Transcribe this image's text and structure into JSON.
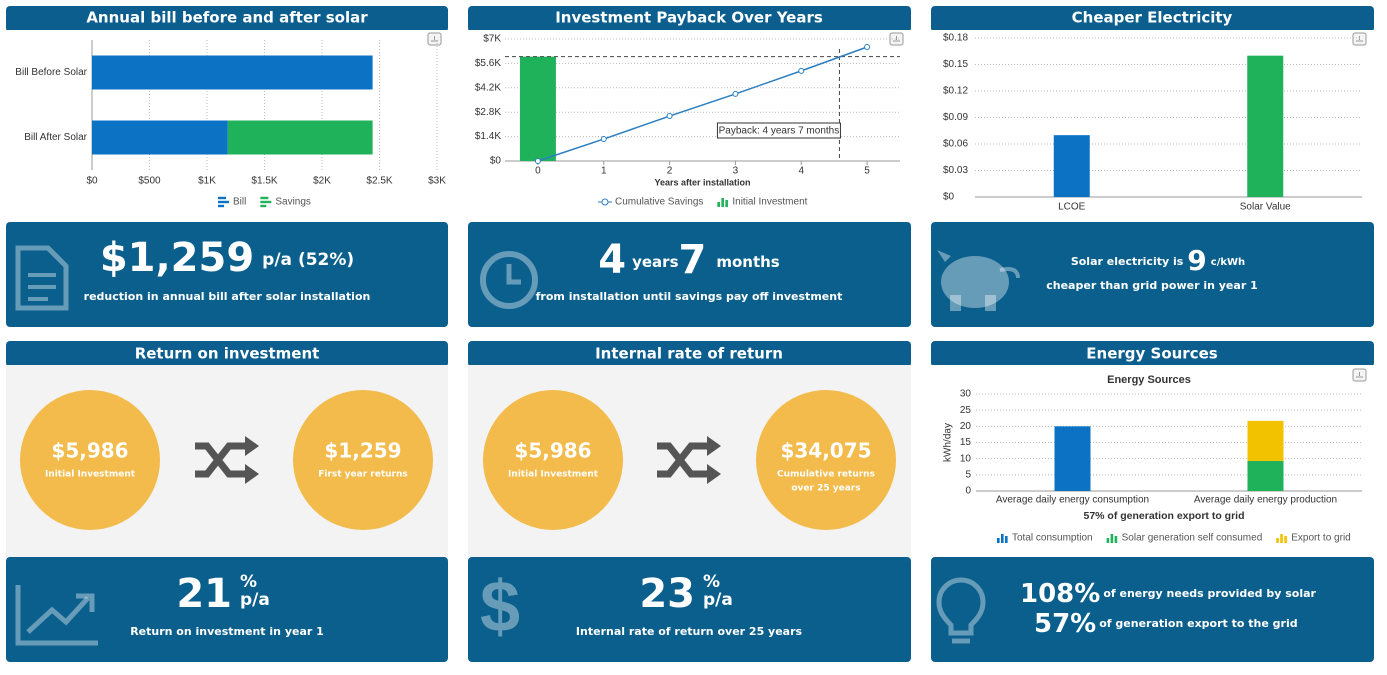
{
  "panels": [
    {
      "header": "Annual bill before and after solar",
      "kpi": {
        "value": "$1,259",
        "unit": "p/a (52%)",
        "text": "reduction in annual bill after solar installation"
      }
    },
    {
      "header": "Investment Payback Over Years",
      "kpi": {
        "years": "4",
        "years_unit": "years",
        "months": "7",
        "months_unit": "months",
        "text": "from installation until savings pay off investment"
      }
    },
    {
      "header": "Cheaper Electricity",
      "kpi": {
        "prefix": "Solar electricity is",
        "value": "9",
        "unit": "c/kWh",
        "text": "cheaper than grid power in year 1"
      }
    },
    {
      "header": "Return on investment",
      "circles": [
        {
          "value": "$5,986",
          "label": "Initial Investment"
        },
        {
          "value": "$1,259",
          "label": "First year returns"
        }
      ],
      "kpi": {
        "value": "21",
        "unit_top": "%",
        "unit_bottom": "p/a",
        "text": "Return on investment in year 1"
      }
    },
    {
      "header": "Internal rate of return",
      "circles": [
        {
          "value": "$5,986",
          "label": "Initial Investment"
        },
        {
          "value": "$34,075",
          "label": [
            "Cumulative returns",
            "over 25 years"
          ]
        }
      ],
      "kpi": {
        "value": "23",
        "unit_top": "%",
        "unit_bottom": "p/a",
        "text": "Internal rate of return over 25 years"
      }
    },
    {
      "header": "Energy Sources",
      "kpi": {
        "lines": [
          {
            "value": "108%",
            "text": "of energy needs provided by solar"
          },
          {
            "value": "57%",
            "text": "of generation export to the grid"
          }
        ]
      }
    }
  ],
  "chart_data": [
    {
      "type": "bar",
      "orientation": "horizontal",
      "stacked": true,
      "categories": [
        "Bill Before Solar",
        "Bill After Solar"
      ],
      "series": [
        {
          "name": "Bill",
          "color": "#0b72c4",
          "values": [
            2440,
            1181
          ]
        },
        {
          "name": "Savings",
          "color": "#1fb25a",
          "values": [
            null,
            1259
          ]
        }
      ],
      "xlim": [
        0,
        3000
      ],
      "xticks": [
        {
          "value": 0,
          "label": "$0"
        },
        {
          "value": 500,
          "label": "$500"
        },
        {
          "value": 1000,
          "label": "$1K"
        },
        {
          "value": 1500,
          "label": "$1.5K"
        },
        {
          "value": 2000,
          "label": "$2K"
        },
        {
          "value": 2500,
          "label": "$2.5K"
        },
        {
          "value": 3000,
          "label": "$3K"
        }
      ],
      "grid": true
    },
    {
      "type": "combo",
      "x": [
        0,
        1,
        2,
        3,
        4,
        5
      ],
      "xlabel": "Years after installation",
      "series": [
        {
          "name": "Cumulative Savings",
          "type": "line",
          "color": "#2a7fc1",
          "values": [
            0,
            1259,
            2580,
            3850,
            5170,
            6540
          ]
        },
        {
          "name": "Initial Investment",
          "type": "bar",
          "color": "#1fb25a",
          "values": [
            5986,
            null,
            null,
            null,
            null,
            null
          ]
        }
      ],
      "xlim": [
        -0.5,
        5.5
      ],
      "xticks": [
        0,
        1,
        2,
        3,
        4,
        5
      ],
      "ylim": [
        0,
        7000
      ],
      "yticks": [
        {
          "value": 0,
          "label": "$0"
        },
        {
          "value": 1400,
          "label": "$1.4K"
        },
        {
          "value": 2800,
          "label": "$2.8K"
        },
        {
          "value": 4200,
          "label": "$4.2K"
        },
        {
          "value": 5600,
          "label": "$5.6K"
        },
        {
          "value": 7000,
          "label": "$7K"
        }
      ],
      "annotation": {
        "text": "Payback: 4 years 7 months",
        "x": 4.58
      },
      "grid": true
    },
    {
      "type": "bar",
      "categories": [
        "LCOE",
        "Solar Value"
      ],
      "values": [
        0.07,
        0.16
      ],
      "colors": [
        "#0b72c4",
        "#1fb25a"
      ],
      "ylim": [
        0,
        0.18
      ],
      "yticks": [
        {
          "value": 0,
          "label": "$0"
        },
        {
          "value": 0.03,
          "label": "$0.03"
        },
        {
          "value": 0.06,
          "label": "$0.06"
        },
        {
          "value": 0.09,
          "label": "$0.09"
        },
        {
          "value": 0.12,
          "label": "$0.12"
        },
        {
          "value": 0.15,
          "label": "$0.15"
        },
        {
          "value": 0.18,
          "label": "$0.18"
        }
      ],
      "grid": true
    },
    {
      "type": "bar",
      "stacked": true,
      "title": "Energy Sources",
      "subtitle": "57% of generation export to grid",
      "ylabel": "kWh/day",
      "categories": [
        "Average daily energy consumption",
        "Average daily energy production"
      ],
      "series": [
        {
          "name": "Total consumption",
          "color": "#0b72c4",
          "values": [
            20,
            null
          ]
        },
        {
          "name": "Solar generation self consumed",
          "color": "#1fb25a",
          "values": [
            null,
            9.3
          ]
        },
        {
          "name": "Export to grid",
          "color": "#f2c200",
          "values": [
            null,
            12.4
          ]
        }
      ],
      "ylim": [
        0,
        30
      ],
      "yticks": [
        0,
        5,
        10,
        15,
        20,
        25,
        30
      ],
      "grid": true
    }
  ]
}
